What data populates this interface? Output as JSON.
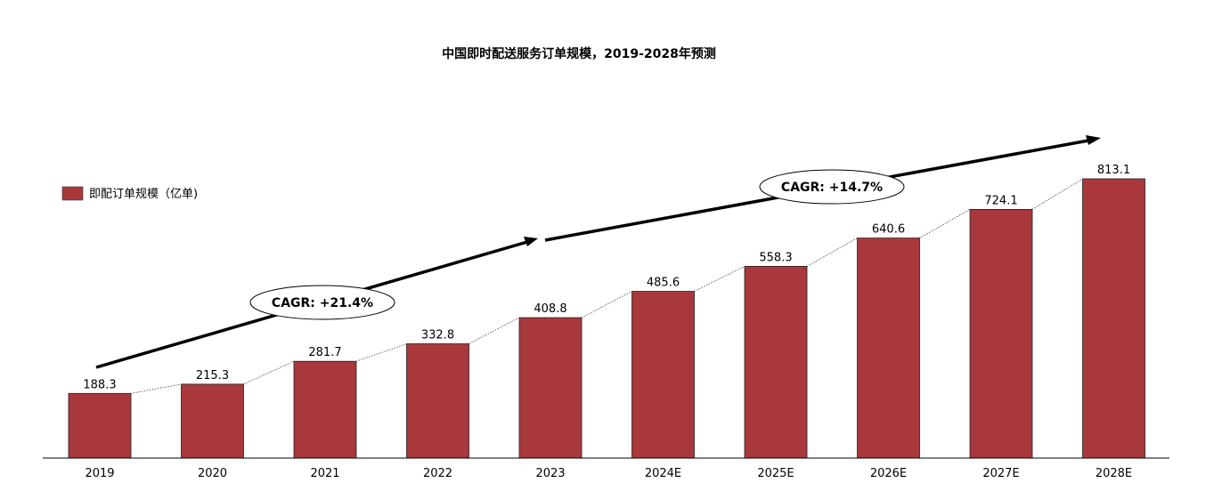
{
  "chart_data": {
    "type": "bar",
    "title": "中国即时配送服务订单规模，2019-2028年预测",
    "categories": [
      "2019",
      "2020",
      "2021",
      "2022",
      "2023",
      "2024E",
      "2025E",
      "2026E",
      "2027E",
      "2028E"
    ],
    "series": [
      {
        "name": "即配订单规模（亿单)",
        "values": [
          188.3,
          215.3,
          281.7,
          332.8,
          408.8,
          485.6,
          558.3,
          640.6,
          724.1,
          813.1
        ],
        "color": "#a8383c"
      }
    ],
    "xlabel": "",
    "ylabel": "",
    "ylim": [
      0,
      813.1
    ],
    "grid": false,
    "legend": "left",
    "connector_lines": "dotted",
    "annotations": [
      {
        "label": "CAGR: +21.4%",
        "from": "2019",
        "to": "2023"
      },
      {
        "label": "CAGR: +14.7%",
        "from": "2023",
        "to": "2028E"
      }
    ]
  }
}
